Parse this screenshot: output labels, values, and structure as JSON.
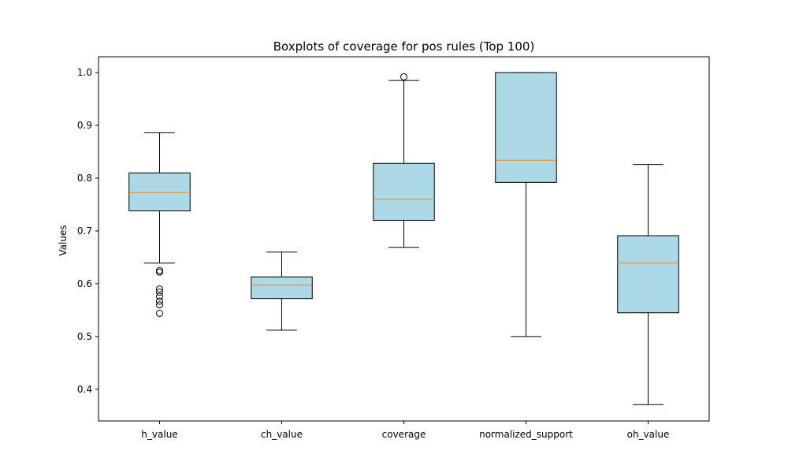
{
  "chart_data": {
    "type": "boxplot",
    "title": "Boxplots of coverage for pos rules (Top 100)",
    "xlabel": "",
    "ylabel": "Values",
    "ylim": [
      0.34,
      1.03
    ],
    "yticks": [
      "0.4",
      "0.5",
      "0.6",
      "0.7",
      "0.8",
      "0.9",
      "1.0"
    ],
    "grid": false,
    "colors": {
      "box_fill": "#add8e6",
      "median": "#ff7f0e",
      "line": "#000000"
    },
    "categories": [
      "h_value",
      "ch_value",
      "coverage",
      "normalized_support",
      "oh_value"
    ],
    "boxes": [
      {
        "label": "h_value",
        "whisker_low": 0.639,
        "q1": 0.738,
        "median": 0.773,
        "q3": 0.81,
        "whisker_high": 0.886,
        "outliers": [
          0.625,
          0.622,
          0.59,
          0.584,
          0.576,
          0.567,
          0.56,
          0.544
        ]
      },
      {
        "label": "ch_value",
        "whisker_low": 0.512,
        "q1": 0.572,
        "median": 0.597,
        "q3": 0.613,
        "whisker_high": 0.66,
        "outliers": []
      },
      {
        "label": "coverage",
        "whisker_low": 0.669,
        "q1": 0.72,
        "median": 0.76,
        "q3": 0.828,
        "whisker_high": 0.985,
        "outliers": [
          0.992
        ]
      },
      {
        "label": "normalized_support",
        "whisker_low": 0.5,
        "q1": 0.792,
        "median": 0.834,
        "q3": 1.0,
        "whisker_high": 1.0,
        "outliers": []
      },
      {
        "label": "oh_value",
        "whisker_low": 0.371,
        "q1": 0.545,
        "median": 0.639,
        "q3": 0.691,
        "whisker_high": 0.826,
        "outliers": []
      }
    ]
  }
}
